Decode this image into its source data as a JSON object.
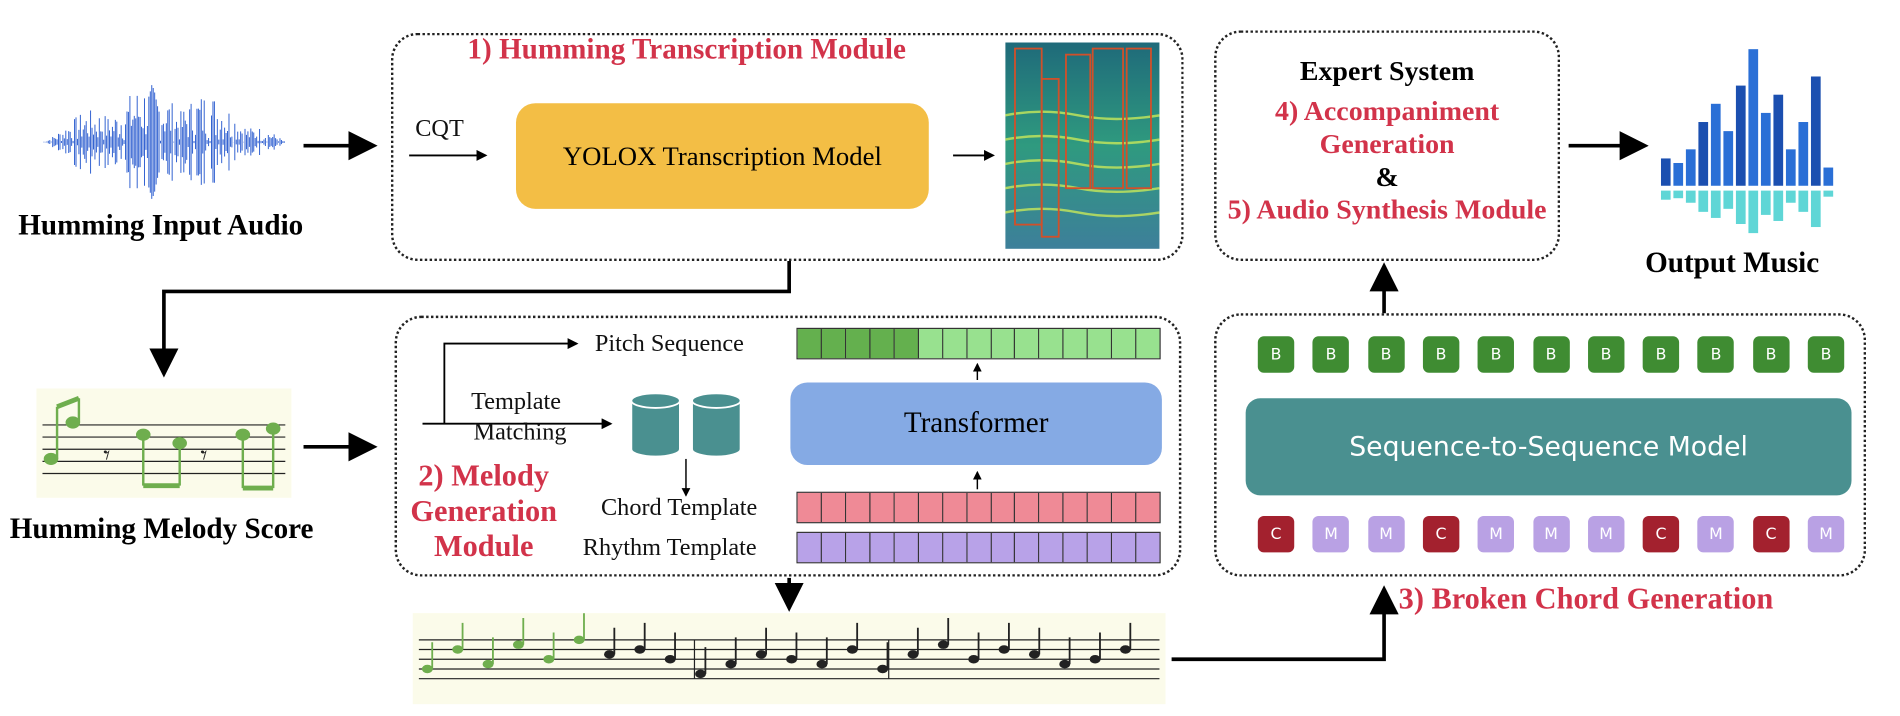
{
  "input": {
    "label": "Humming Input Audio",
    "waveform_color": "#2E5FD0"
  },
  "module1": {
    "title": "1) Humming Transcription Module",
    "cqt": "CQT",
    "model": "YOLOX Transcription Model",
    "model_color": "#F3BE45"
  },
  "score": {
    "label": "Humming Melody Score"
  },
  "module2": {
    "title_lines": [
      "2) Melody",
      "Generation",
      "Module"
    ],
    "pitch": "Pitch Sequence",
    "template_matching": [
      "Template",
      "Matching"
    ],
    "transformer": "Transformer",
    "chord": "Chord Template",
    "rhythm": "Rhythm Template",
    "pitch_dark_cells": 5,
    "cells": 15,
    "colors": {
      "pitch_dark": "#64B04E",
      "pitch_light": "#98E18F",
      "chord": "#EF8A96",
      "rhythm": "#B8A2E8",
      "transformer": "#85AAE4",
      "db": "#4A9090"
    }
  },
  "module3": {
    "title": "3) Broken Chord Generation",
    "model": "Sequence-to-Sequence Model",
    "outputs": [
      "B",
      "B",
      "B",
      "B",
      "B",
      "B",
      "B",
      "B",
      "B",
      "B",
      "B"
    ],
    "inputs": [
      "C",
      "M",
      "M",
      "C",
      "M",
      "M",
      "M",
      "C",
      "M",
      "C",
      "M"
    ],
    "colors": {
      "B": "#3F8C32",
      "C": "#A3212E",
      "M": "#B9A1E4",
      "model": "#4A9090"
    }
  },
  "expert": {
    "title": "Expert System",
    "line1": "4) Accompaniment",
    "line2": "Generation",
    "amp": "&",
    "line3": "5) Audio Synthesis Module"
  },
  "output": {
    "label": "Output Music"
  }
}
